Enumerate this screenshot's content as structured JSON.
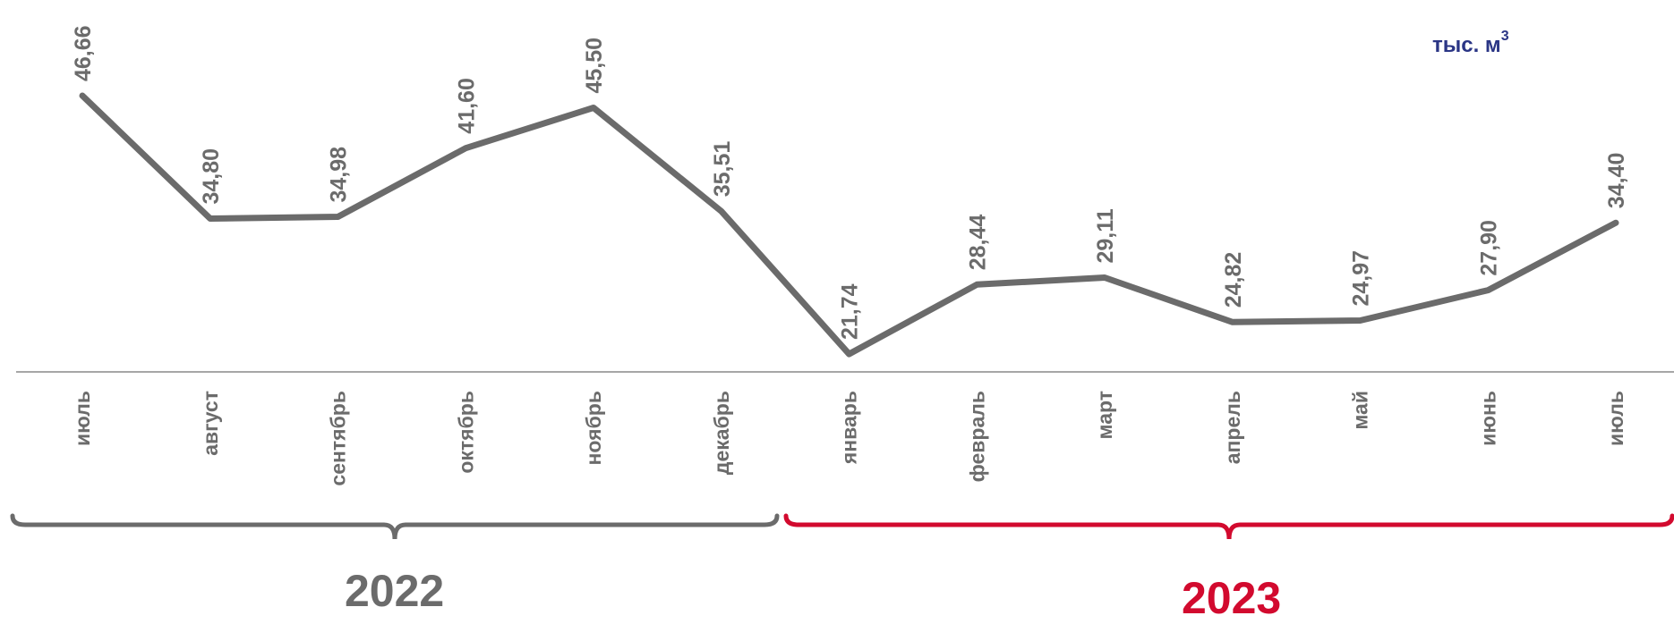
{
  "unit": {
    "text": "тыс. м",
    "superscript": "3"
  },
  "chart_data": {
    "type": "line",
    "categories": [
      "июль",
      "август",
      "сентябрь",
      "октябрь",
      "ноябрь",
      "декабрь",
      "январь",
      "февраль",
      "март",
      "апрель",
      "май",
      "июнь",
      "июль"
    ],
    "values": [
      46.66,
      34.8,
      34.98,
      41.6,
      45.5,
      35.51,
      21.74,
      28.44,
      29.11,
      24.82,
      24.97,
      27.9,
      34.4
    ],
    "value_labels": [
      "46,66",
      "34,80",
      "34,98",
      "41,60",
      "45,50",
      "35,51",
      "21,74",
      "28,44",
      "29,11",
      "24,82",
      "24,97",
      "27,90",
      "34,40"
    ],
    "ylim": [
      21.74,
      46.66
    ],
    "grid": false,
    "line_color": "#6b6b6b",
    "groups": [
      {
        "label": "2022",
        "first": 0,
        "last": 5,
        "color": "#6b6b6b"
      },
      {
        "label": "2023",
        "first": 6,
        "last": 12,
        "color": "#d20a2e"
      }
    ]
  }
}
